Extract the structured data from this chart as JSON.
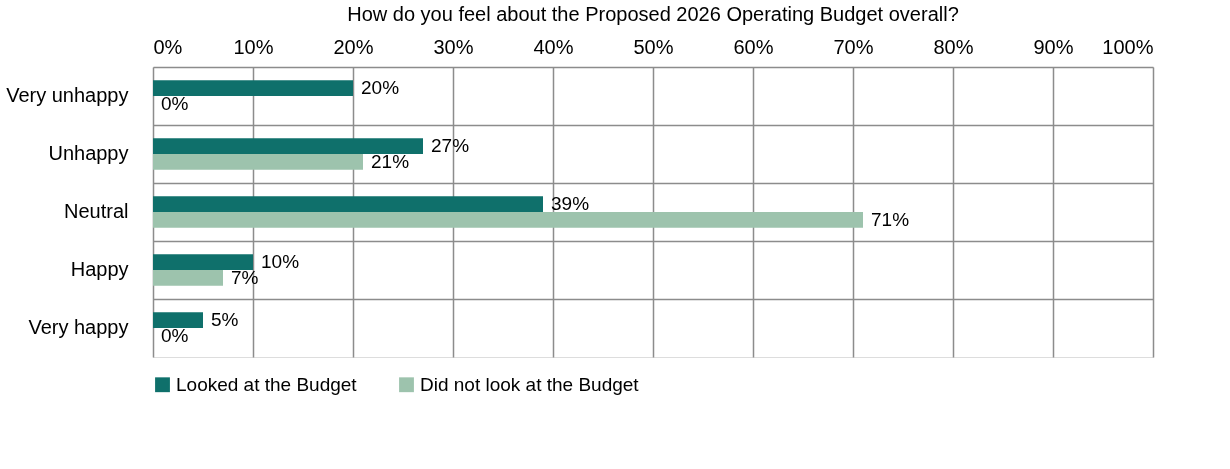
{
  "chart_data": {
    "type": "bar",
    "orientation": "horizontal",
    "title": "How do you feel about the Proposed 2026 Operating Budget overall?",
    "categories": [
      "Very unhappy",
      "Unhappy",
      "Neutral",
      "Happy",
      "Very happy"
    ],
    "series": [
      {
        "name": "Looked at the Budget",
        "color": "#0f706b",
        "values": [
          20,
          27,
          39,
          10,
          5
        ],
        "value_labels": [
          "20%",
          "27%",
          "39%",
          "10%",
          "5%"
        ]
      },
      {
        "name": "Did not look at the Budget",
        "color": "#9dc3ad",
        "values": [
          0,
          21,
          71,
          7,
          0
        ],
        "value_labels": [
          "0%",
          "21%",
          "71%",
          "7%",
          "0%"
        ]
      }
    ],
    "xlim": [
      0,
      100
    ],
    "xticks": [
      {
        "value": 0,
        "label": "0%"
      },
      {
        "value": 10,
        "label": "10%"
      },
      {
        "value": 20,
        "label": "20%"
      },
      {
        "value": 30,
        "label": "30%"
      },
      {
        "value": 40,
        "label": "40%"
      },
      {
        "value": 50,
        "label": "50%"
      },
      {
        "value": 60,
        "label": "60%"
      },
      {
        "value": 70,
        "label": "70%"
      },
      {
        "value": 80,
        "label": "80%"
      },
      {
        "value": 90,
        "label": "90%"
      },
      {
        "value": 100,
        "label": "100%"
      }
    ],
    "grid": true,
    "legend": "bottom"
  }
}
